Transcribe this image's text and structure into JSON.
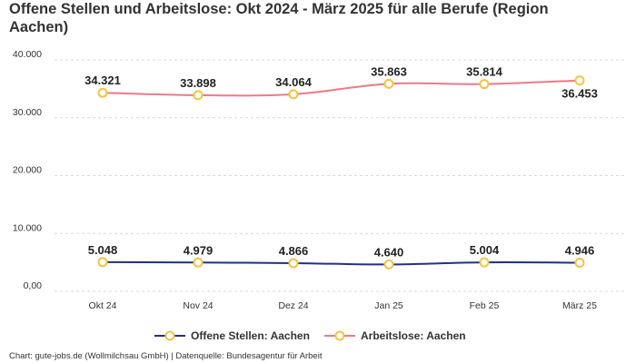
{
  "chart_data": {
    "type": "line",
    "title": "Offene Stellen und Arbeitslose: Okt 2024 - März 2025 für alle Berufe (Region Aachen)",
    "categories": [
      "Okt 24",
      "Nov 24",
      "Dez 24",
      "Jan 25",
      "Feb 25",
      "März 25"
    ],
    "series": [
      {
        "name": "Offene Stellen: Aachen",
        "values": [
          5048,
          4979,
          4866,
          4640,
          5004,
          4946
        ],
        "labels": [
          "5.048",
          "4.979",
          "4.866",
          "4.640",
          "5.004",
          "4.946"
        ],
        "color": "#1f2f8c"
      },
      {
        "name": "Arbeitslose: Aachen",
        "values": [
          34321,
          33898,
          34064,
          35863,
          35814,
          36453
        ],
        "labels": [
          "34.321",
          "33.898",
          "34.064",
          "35.863",
          "35.814",
          "36.453"
        ],
        "color": "#f07888"
      }
    ],
    "yticks": [
      0,
      10000,
      20000,
      30000,
      40000
    ],
    "ytick_labels": [
      "0,00",
      "10.000",
      "20.000",
      "30.000",
      "40.000"
    ],
    "ylim": [
      0,
      40000
    ],
    "grid": true,
    "legend_position": "bottom",
    "marker_color": "#f5c242",
    "xlabel": "",
    "ylabel": ""
  },
  "footer": "Chart: gute-jobs.de (Wollmilchsau GmbH) | Datenquelle: Bundesagentur für Arbeit"
}
